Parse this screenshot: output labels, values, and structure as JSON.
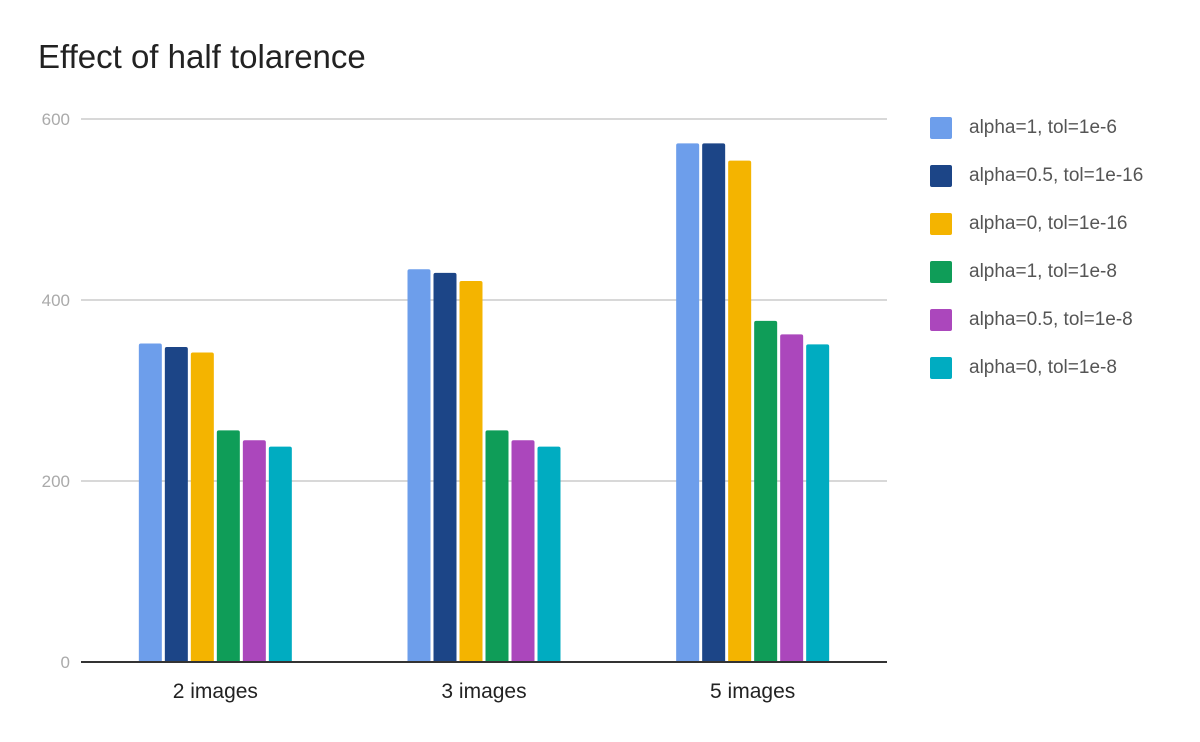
{
  "chart_data": {
    "type": "bar",
    "title": "Effect of half tolarence",
    "xlabel": "",
    "ylabel": "",
    "categories": [
      "2 images",
      "3 images",
      "5 images"
    ],
    "ylim": [
      0,
      600
    ],
    "yticks": [
      0,
      200,
      400,
      600
    ],
    "grid": true,
    "legend_position": "right",
    "series": [
      {
        "name": "alpha=1, tol=1e-6",
        "color": "#6d9eeb",
        "values": [
          352,
          434,
          573
        ]
      },
      {
        "name": "alpha=0.5, tol=1e-16",
        "color": "#1c4587",
        "values": [
          348,
          430,
          573
        ]
      },
      {
        "name": "alpha=0, tol=1e-16",
        "color": "#f4b400",
        "values": [
          342,
          421,
          554
        ]
      },
      {
        "name": "alpha=1, tol=1e-8",
        "color": "#0f9d58",
        "values": [
          256,
          256,
          377
        ]
      },
      {
        "name": "alpha=0.5, tol=1e-8",
        "color": "#ab47bc",
        "values": [
          245,
          245,
          362
        ]
      },
      {
        "name": "alpha=0, tol=1e-8",
        "color": "#00acc1",
        "values": [
          238,
          238,
          351
        ]
      }
    ]
  }
}
